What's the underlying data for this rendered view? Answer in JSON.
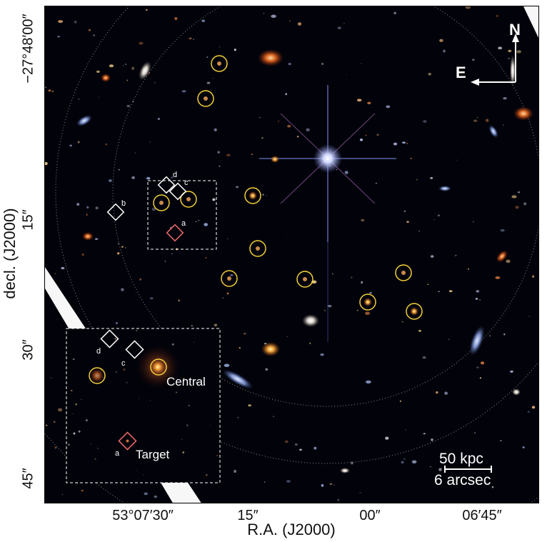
{
  "figure": {
    "x_axis_title": "R.A. (J2000)",
    "y_axis_title": "decl. (J2000)",
    "x_ticks": [
      "53°07′30″",
      "15″",
      "00″",
      "06′45″"
    ],
    "y_ticks": [
      "−27°48′00″",
      "15″",
      "30″",
      "45″"
    ]
  },
  "compass": {
    "north": "N",
    "east": "E"
  },
  "scale_bar": {
    "physical": "50 kpc",
    "angular": "6 arcsec"
  },
  "inset": {
    "central_label": "Central",
    "target_label": "Target"
  },
  "object_letters": {
    "a": "a",
    "b": "b",
    "c": "c",
    "d": "d"
  },
  "colors": {
    "circle": "#f5cf3a",
    "diamond": "#ffffff",
    "target_diamond": "#f06a6a",
    "sky": "#02030a"
  }
}
